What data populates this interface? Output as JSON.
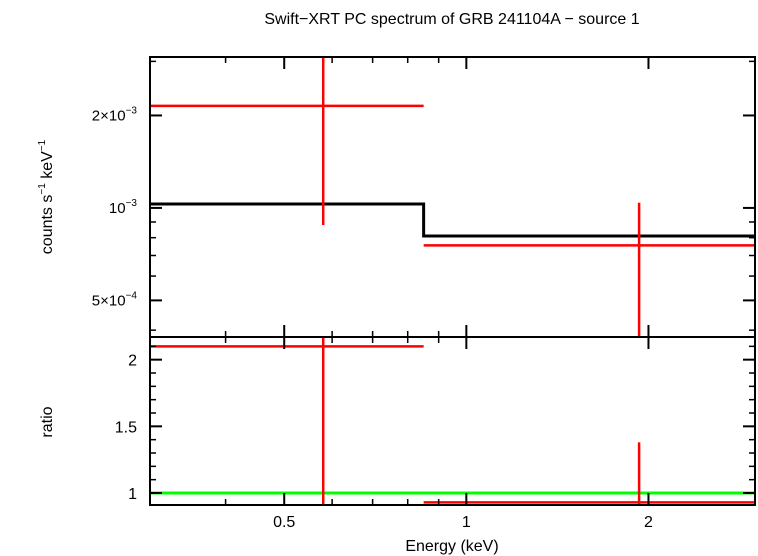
{
  "chart_data": [
    {
      "type": "scatter",
      "panel": "spectrum",
      "title": "Swift−XRT PC spectrum of GRB 241104A − source 1",
      "ylabel": {
        "base": "counts s",
        "exp1": "−1",
        "mid": " keV",
        "exp2": "−1"
      },
      "x_scale": "log",
      "y_scale": "log",
      "xlim": [
        0.3,
        3.0
      ],
      "ylim": [
        0.00038,
        0.0031
      ],
      "y_ticks": [
        {
          "value": 0.0005,
          "mant": "5×10",
          "exp": "−4"
        },
        {
          "value": 0.001,
          "mant": "10",
          "exp": "−3"
        },
        {
          "value": 0.002,
          "mant": "2×10",
          "exp": "−3"
        }
      ],
      "data_series": {
        "color": "#ff0000",
        "points": [
          {
            "x_low": 0.3,
            "x_high": 0.85,
            "x": 0.58,
            "y": 0.00215,
            "y_low": 0.00088,
            "y_high": 0.0031
          },
          {
            "x_low": 0.85,
            "x_high": 3.0,
            "x": 1.93,
            "y": 0.000755,
            "y_low": 0.00038,
            "y_high": 0.00104
          }
        ]
      },
      "model_series": {
        "color": "#000000",
        "steps": [
          {
            "x_low": 0.3,
            "x_high": 0.85,
            "y": 0.00103
          },
          {
            "x_low": 0.85,
            "x_high": 3.0,
            "y": 0.00081
          }
        ]
      }
    },
    {
      "type": "scatter",
      "panel": "ratio",
      "xlabel": "Energy (keV)",
      "ylabel": "ratio",
      "x_scale": "log",
      "xlim": [
        0.3,
        3.0
      ],
      "ylim": [
        0.91,
        2.17
      ],
      "x_ticks": [
        {
          "value": 0.5,
          "label": "0.5"
        },
        {
          "value": 1,
          "label": "1"
        },
        {
          "value": 2,
          "label": "2"
        }
      ],
      "y_ticks": [
        {
          "value": 1,
          "label": "1"
        },
        {
          "value": 1.5,
          "label": "1.5"
        },
        {
          "value": 2,
          "label": "2"
        }
      ],
      "data_series": {
        "color": "#ff0000",
        "points": [
          {
            "x_low": 0.3,
            "x_high": 0.85,
            "x": 0.58,
            "y": 2.1,
            "y_low": 0.91,
            "y_high": 2.17
          },
          {
            "x_low": 0.85,
            "x_high": 3.0,
            "x": 1.93,
            "y": 0.93,
            "y_low": 0.91,
            "y_high": 1.38
          }
        ]
      },
      "reference_line": {
        "y": 1,
        "color": "#00ff00"
      }
    }
  ]
}
